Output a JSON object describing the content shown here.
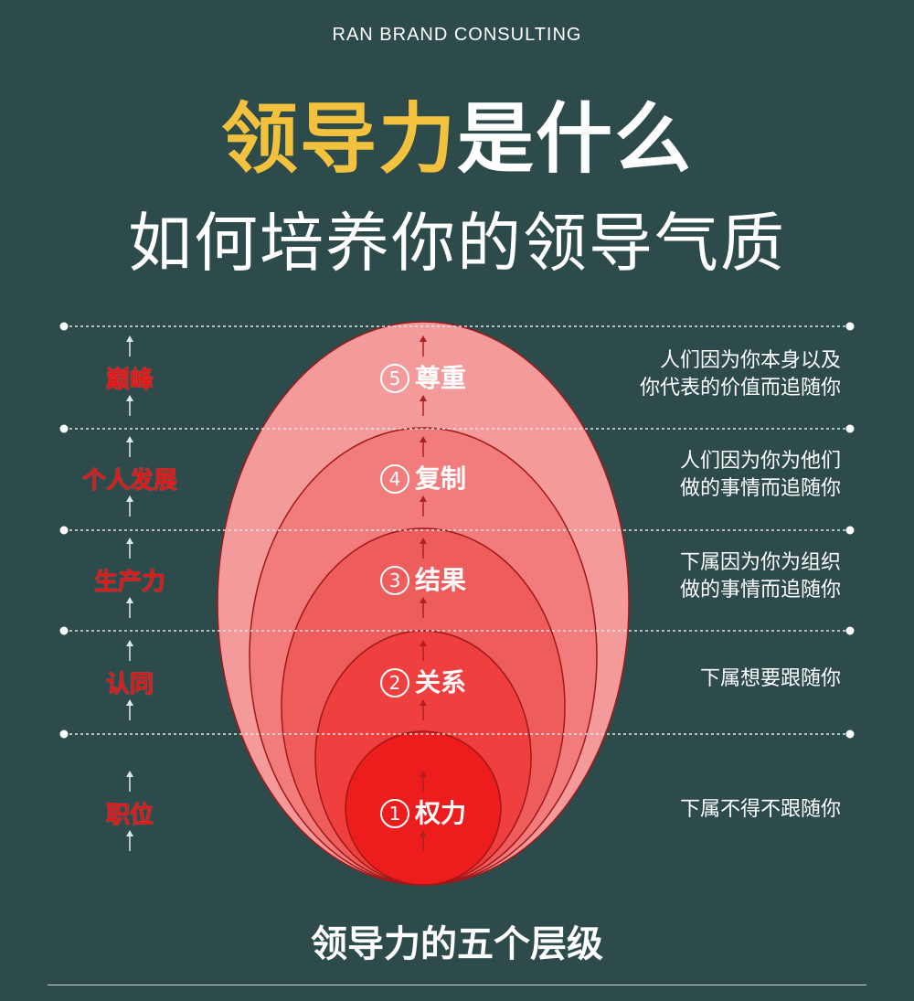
{
  "brand": "RAN BRAND CONSULTING",
  "title": {
    "highlight": "领导力",
    "rest": "是什么"
  },
  "subtitle": "如何培养你的领导气质",
  "levels": [
    {
      "number": "5",
      "name": "尊重",
      "stage": "巅峰",
      "description": [
        "人们因为你本身以及",
        "你代表的价值而追随你"
      ],
      "color": "#f49a9a"
    },
    {
      "number": "4",
      "name": "复制",
      "stage": "个人发展",
      "description": [
        "人们因为你为他们",
        "做的事情而追随你"
      ],
      "color": "#f27c7c"
    },
    {
      "number": "3",
      "name": "结果",
      "stage": "生产力",
      "description": [
        "下属因为你为组织",
        "做的事情而追随你"
      ],
      "color": "#ef5c5c"
    },
    {
      "number": "2",
      "name": "关系",
      "stage": "认同",
      "description": [
        "下属想要跟随你"
      ],
      "color": "#ef3f3f"
    },
    {
      "number": "1",
      "name": "权力",
      "stage": "职位",
      "description": [
        "下属不得不跟随你"
      ],
      "color": "#ee1d1d"
    }
  ],
  "footer": "领导力的五个层级",
  "colors": {
    "background": "#2e4b4c",
    "accent": "#f2c13d",
    "stage_label": "#e01818"
  }
}
